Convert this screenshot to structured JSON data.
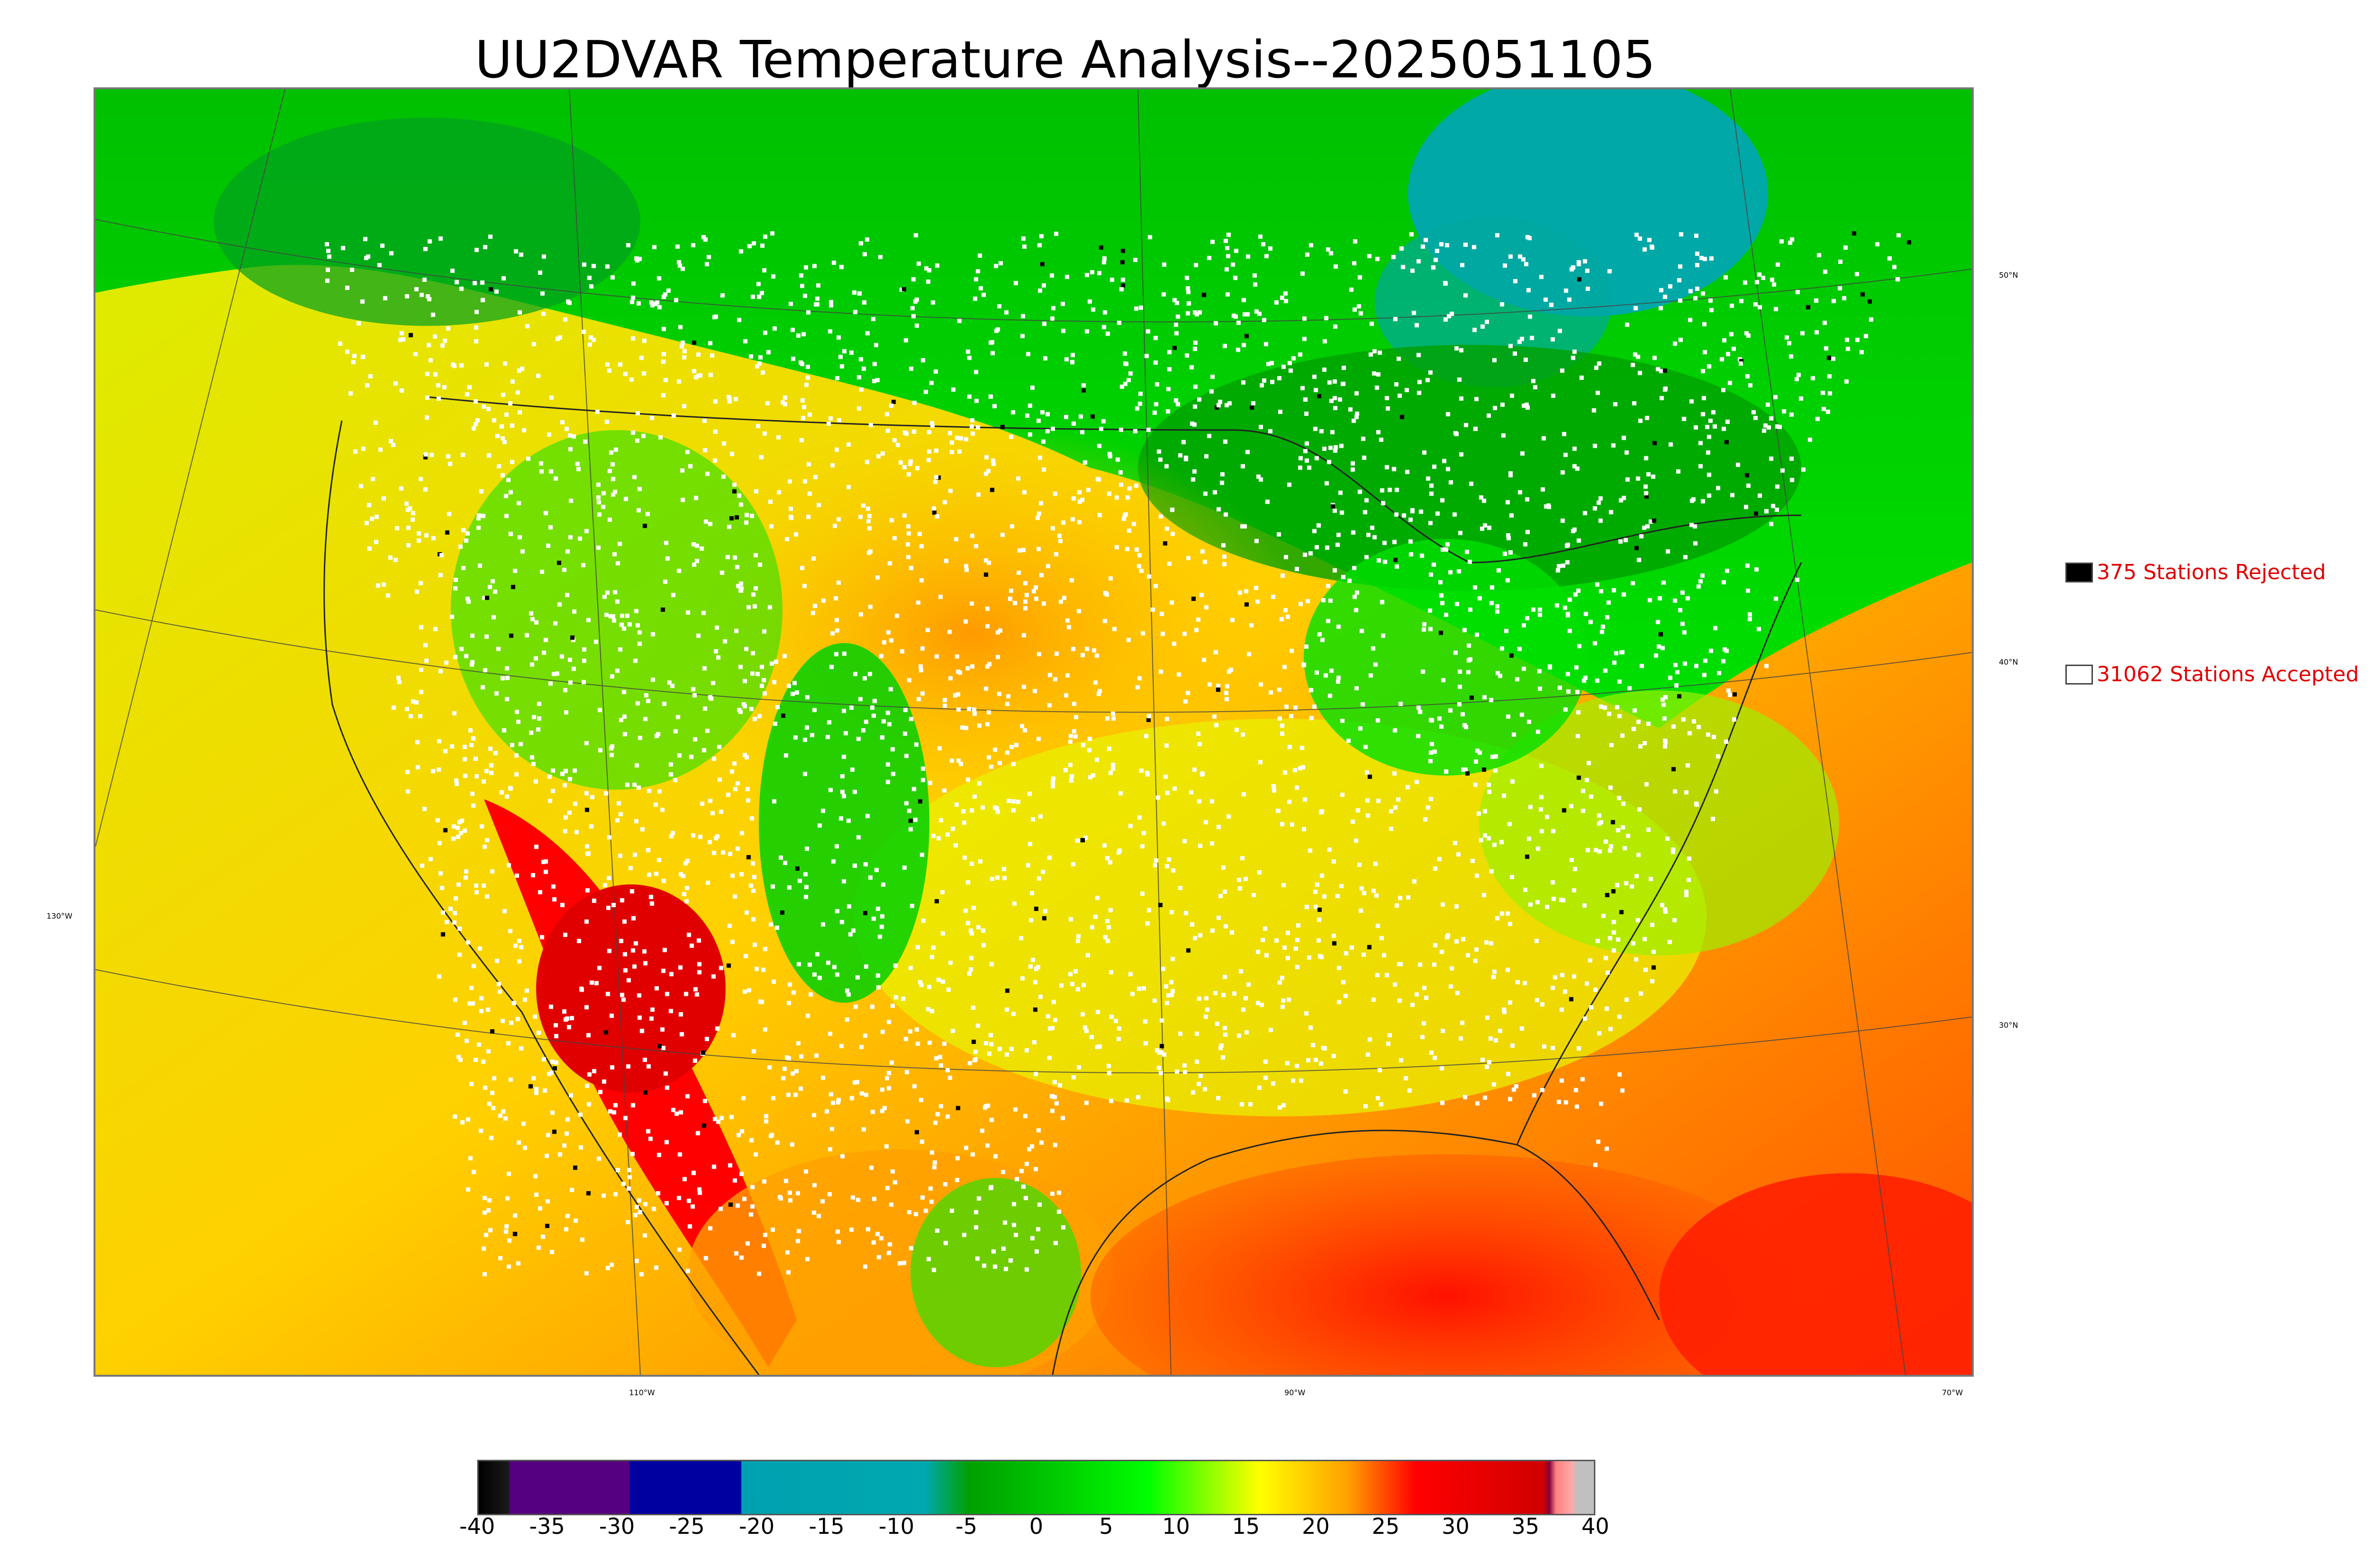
{
  "title": "UU2DVAR Temperature Analysis--2025051105",
  "longitude_labels": [
    "130°W",
    "110°W",
    "90°W",
    "70°W"
  ],
  "latitude_labels": [
    "50°N",
    "40°N",
    "30°N"
  ],
  "legend": {
    "rejected": "375 Stations Rejected",
    "accepted": "31062 Stations Accepted",
    "rejected_count": 375,
    "accepted_count": 31062
  },
  "colorbar": {
    "ticks": [
      "-40",
      "-35",
      "-30",
      "-25",
      "-20",
      "-15",
      "-10",
      "-5",
      "0",
      "5",
      "10",
      "15",
      "20",
      "25",
      "30",
      "35",
      "40"
    ],
    "range": [
      -40,
      40
    ],
    "colors": {
      "black": "#000000",
      "purple": "#550080",
      "navy": "#0000a0",
      "teal": "#00a0b0",
      "dark_green": "#00a000",
      "green": "#00ff00",
      "yellow": "#ffff00",
      "orange": "#ffa000",
      "red": "#ff0000",
      "dark_red": "#d00000",
      "pink": "#ffaaaa",
      "gray": "#c0c0c0"
    }
  },
  "station_colors": {
    "accepted": "#ffffff",
    "rejected": "#000000"
  }
}
